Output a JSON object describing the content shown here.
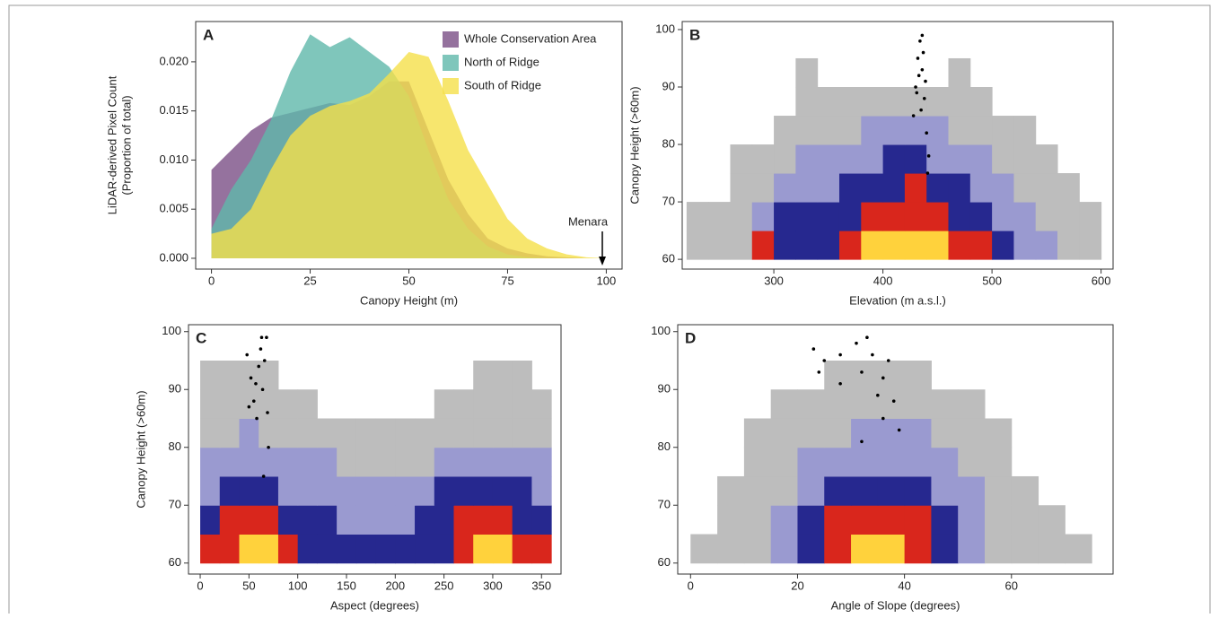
{
  "chart_data": [
    {
      "type": "area",
      "panel_label": "A",
      "xlabel": "Canopy Height (m)",
      "ylabel": [
        "LiDAR-derived Pixel Count",
        "(Proportion of total)"
      ],
      "x": [
        0,
        5,
        10,
        15,
        20,
        25,
        30,
        35,
        40,
        45,
        50,
        55,
        60,
        65,
        70,
        75,
        80,
        85,
        90,
        95,
        100
      ],
      "series": [
        {
          "name": "Whole Conservation Area",
          "color": "#7b4f86",
          "values": [
            0.009,
            0.011,
            0.013,
            0.0143,
            0.0148,
            0.0153,
            0.0158,
            0.0156,
            0.0165,
            0.018,
            0.018,
            0.013,
            0.008,
            0.0045,
            0.002,
            0.001,
            0.0005,
            0.0002,
            0.0001,
            0,
            0
          ]
        },
        {
          "name": "North of Ridge",
          "color": "#5fb8aa",
          "values": [
            0.003,
            0.007,
            0.01,
            0.014,
            0.019,
            0.0228,
            0.0215,
            0.0225,
            0.021,
            0.0195,
            0.0165,
            0.011,
            0.006,
            0.003,
            0.0012,
            0.0004,
            0.0001,
            0,
            0,
            0,
            0
          ]
        },
        {
          "name": "South of Ridge",
          "color": "#f5e04a",
          "values": [
            0.0025,
            0.003,
            0.005,
            0.009,
            0.0125,
            0.0145,
            0.0155,
            0.016,
            0.0168,
            0.0188,
            0.021,
            0.0205,
            0.016,
            0.011,
            0.0075,
            0.004,
            0.002,
            0.001,
            0.0004,
            0.0001,
            0
          ]
        }
      ],
      "xlim": [
        -4,
        104
      ],
      "xticks": [
        0,
        25,
        50,
        75,
        100
      ],
      "ylim": [
        -0.0011,
        0.0241
      ],
      "yticks": [
        {
          "value": 0,
          "label": "0.000"
        },
        {
          "value": 0.005,
          "label": "0.005"
        },
        {
          "value": 0.01,
          "label": "0.010"
        },
        {
          "value": 0.015,
          "label": "0.015"
        },
        {
          "value": 0.02,
          "label": "0.020"
        }
      ],
      "legend": "upper right",
      "annotation": {
        "text": "Menara",
        "x": 99
      }
    },
    {
      "type": "heatmap",
      "panel_label": "B",
      "xlabel": "Elevation (m a.s.l.)",
      "ylabel": [
        "Canopy Height (>60m)"
      ],
      "colorscale": [
        "#bdbdbd",
        "#9a9ad0",
        "#26288f",
        "#d9261c",
        "#ffd23c"
      ],
      "xbins": [
        220,
        240,
        260,
        280,
        300,
        320,
        340,
        360,
        380,
        400,
        420,
        440,
        460,
        480,
        500,
        520,
        540,
        560,
        580,
        600
      ],
      "ybins": [
        60,
        65,
        70,
        75,
        80,
        85,
        90,
        95,
        100
      ],
      "z": [
        [
          1,
          1,
          1,
          4,
          3,
          3,
          3,
          4,
          5,
          5,
          5,
          5,
          4,
          4,
          3,
          2,
          2,
          1,
          1
        ],
        [
          1,
          1,
          1,
          2,
          3,
          3,
          3,
          3,
          4,
          4,
          4,
          4,
          3,
          3,
          2,
          2,
          1,
          1,
          1
        ],
        [
          0,
          0,
          1,
          1,
          2,
          2,
          2,
          3,
          3,
          3,
          4,
          3,
          3,
          2,
          2,
          1,
          1,
          1,
          0
        ],
        [
          0,
          0,
          1,
          1,
          1,
          2,
          2,
          2,
          2,
          3,
          3,
          2,
          2,
          2,
          1,
          1,
          1,
          0,
          0
        ],
        [
          0,
          0,
          0,
          0,
          1,
          1,
          1,
          1,
          2,
          2,
          2,
          2,
          1,
          1,
          1,
          1,
          0,
          0,
          0
        ],
        [
          0,
          0,
          0,
          0,
          0,
          1,
          1,
          1,
          1,
          1,
          1,
          1,
          1,
          1,
          0,
          0,
          0,
          0,
          0
        ],
        [
          0,
          0,
          0,
          0,
          0,
          1,
          0,
          0,
          0,
          0,
          0,
          0,
          1,
          0,
          0,
          0,
          0,
          0,
          0
        ],
        [
          0,
          0,
          0,
          0,
          0,
          0,
          0,
          0,
          0,
          0,
          0,
          0,
          0,
          0,
          0,
          0,
          0,
          0,
          0
        ]
      ],
      "points": {
        "color": "#000000",
        "x": [
          428,
          430,
          432,
          434,
          436,
          438,
          440,
          442,
          433,
          437,
          435,
          431,
          439,
          436,
          441
        ],
        "y": [
          85,
          90,
          95,
          98,
          93,
          88,
          82,
          78,
          92,
          96,
          86,
          89,
          91,
          99,
          75
        ]
      },
      "xlim": [
        216,
        611
      ],
      "xticks": [
        300,
        400,
        500,
        600
      ],
      "ylim": [
        58.3,
        101.4
      ],
      "yticks": [
        60,
        70,
        80,
        90,
        100
      ]
    },
    {
      "type": "heatmap",
      "panel_label": "C",
      "xlabel": "Aspect (degrees)",
      "ylabel": [
        "Canopy Height (>60m)"
      ],
      "colorscale": [
        "#bdbdbd",
        "#9a9ad0",
        "#26288f",
        "#d9261c",
        "#ffd23c"
      ],
      "xbins": [
        0,
        20,
        40,
        60,
        80,
        100,
        120,
        140,
        160,
        180,
        200,
        220,
        240,
        260,
        280,
        300,
        320,
        340,
        360
      ],
      "ybins": [
        60,
        65,
        70,
        75,
        80,
        85,
        90,
        95,
        100
      ],
      "z": [
        [
          4,
          4,
          5,
          5,
          4,
          3,
          3,
          3,
          3,
          3,
          3,
          3,
          3,
          4,
          5,
          5,
          4,
          4
        ],
        [
          3,
          4,
          4,
          4,
          3,
          3,
          3,
          2,
          2,
          2,
          2,
          3,
          3,
          4,
          4,
          4,
          3,
          3
        ],
        [
          2,
          3,
          3,
          3,
          2,
          2,
          2,
          2,
          2,
          2,
          2,
          2,
          3,
          3,
          3,
          3,
          3,
          2
        ],
        [
          2,
          2,
          2,
          2,
          2,
          2,
          2,
          1,
          1,
          1,
          1,
          1,
          2,
          2,
          2,
          2,
          2,
          2
        ],
        [
          1,
          1,
          2,
          1,
          1,
          1,
          1,
          1,
          1,
          1,
          1,
          1,
          1,
          1,
          1,
          1,
          1,
          1
        ],
        [
          1,
          1,
          1,
          1,
          1,
          1,
          0,
          0,
          0,
          0,
          0,
          0,
          1,
          1,
          1,
          1,
          1,
          1
        ],
        [
          1,
          1,
          1,
          1,
          0,
          0,
          0,
          0,
          0,
          0,
          0,
          0,
          0,
          0,
          1,
          1,
          1,
          0
        ],
        [
          0,
          0,
          0,
          0,
          0,
          0,
          0,
          0,
          0,
          0,
          0,
          0,
          0,
          0,
          0,
          0,
          0,
          0
        ]
      ],
      "points": {
        "color": "#000000",
        "x": [
          48,
          52,
          55,
          58,
          60,
          62,
          64,
          66,
          68,
          70,
          65,
          57,
          50,
          69,
          63
        ],
        "y": [
          96,
          92,
          88,
          85,
          94,
          97,
          90,
          95,
          99,
          80,
          75,
          91,
          87,
          86,
          99
        ]
      },
      "xlim": [
        -12,
        370
      ],
      "xticks": [
        0,
        50,
        100,
        150,
        200,
        250,
        300,
        350
      ],
      "ylim": [
        58.1,
        101.2
      ],
      "yticks": [
        60,
        70,
        80,
        90,
        100
      ]
    },
    {
      "type": "heatmap",
      "panel_label": "D",
      "xlabel": "Angle of Slope (degrees)",
      "ylabel": [],
      "colorscale": [
        "#bdbdbd",
        "#9a9ad0",
        "#26288f",
        "#d9261c",
        "#ffd23c"
      ],
      "xbins": [
        0,
        5,
        10,
        15,
        20,
        25,
        30,
        35,
        40,
        45,
        50,
        55,
        60,
        65,
        70,
        75
      ],
      "ybins": [
        60,
        65,
        70,
        75,
        80,
        85,
        90,
        95,
        100
      ],
      "z": [
        [
          1,
          1,
          1,
          2,
          3,
          4,
          5,
          5,
          4,
          3,
          2,
          1,
          1,
          1,
          1
        ],
        [
          0,
          1,
          1,
          2,
          3,
          4,
          4,
          4,
          4,
          3,
          2,
          1,
          1,
          1,
          0
        ],
        [
          0,
          1,
          1,
          1,
          2,
          3,
          3,
          3,
          3,
          2,
          2,
          1,
          1,
          0,
          0
        ],
        [
          0,
          0,
          1,
          1,
          2,
          2,
          2,
          2,
          2,
          2,
          1,
          1,
          0,
          0,
          0
        ],
        [
          0,
          0,
          1,
          1,
          1,
          1,
          2,
          2,
          2,
          1,
          1,
          1,
          0,
          0,
          0
        ],
        [
          0,
          0,
          0,
          1,
          1,
          1,
          1,
          1,
          1,
          1,
          1,
          0,
          0,
          0,
          0
        ],
        [
          0,
          0,
          0,
          0,
          0,
          1,
          1,
          1,
          1,
          0,
          0,
          0,
          0,
          0,
          0
        ],
        [
          0,
          0,
          0,
          0,
          0,
          0,
          0,
          0,
          0,
          0,
          0,
          0,
          0,
          0,
          0
        ]
      ],
      "points": {
        "color": "#000000",
        "x": [
          23,
          24,
          25,
          28,
          28,
          31,
          32,
          33,
          34,
          35,
          36,
          37,
          38,
          36,
          32,
          39
        ],
        "y": [
          97,
          93,
          95,
          96,
          91,
          98,
          93,
          99,
          96,
          89,
          92,
          95,
          88,
          85,
          81,
          83
        ]
      },
      "xlim": [
        -2.4,
        79
      ],
      "xticks": [
        0,
        20,
        40,
        60
      ],
      "ylim": [
        58.1,
        101.2
      ],
      "yticks": [
        60,
        70,
        80,
        90,
        100
      ]
    }
  ]
}
